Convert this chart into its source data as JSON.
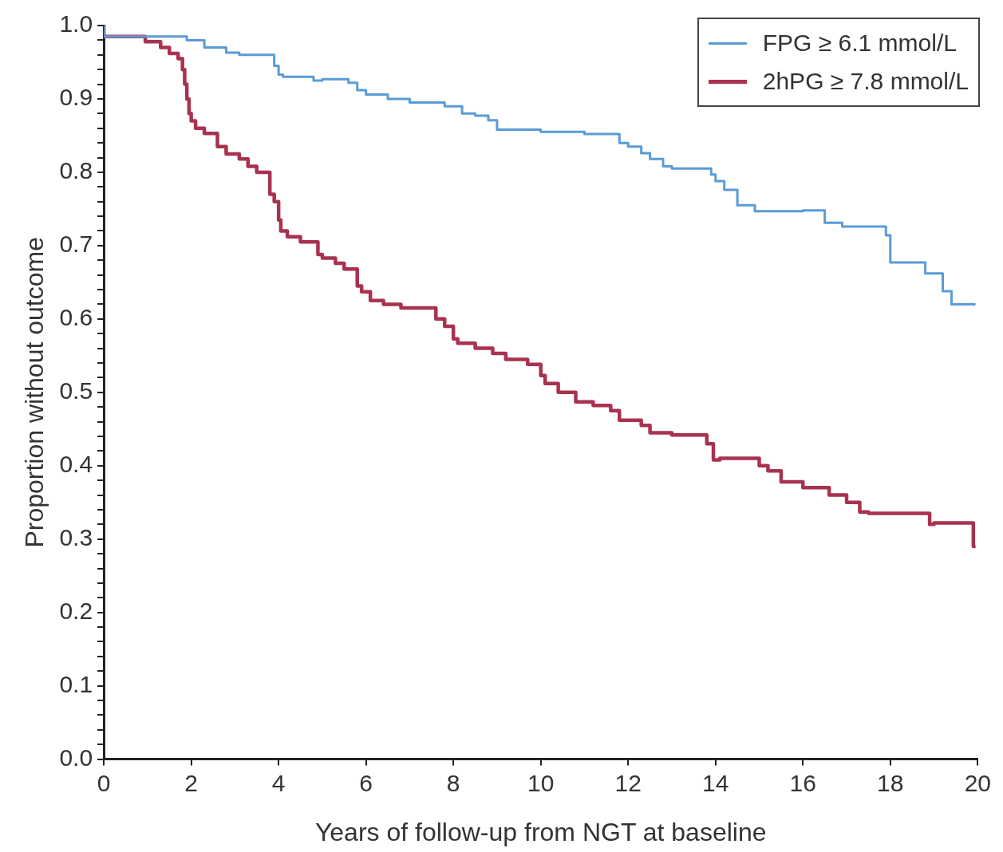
{
  "chart_data": {
    "type": "step",
    "xlabel": "Years of follow-up from NGT at baseline",
    "ylabel": "Proportion without outcome",
    "xlim": [
      0,
      20
    ],
    "xticks": [
      0,
      2,
      4,
      6,
      8,
      10,
      12,
      14,
      16,
      18,
      20
    ],
    "ylim": [
      0,
      1
    ],
    "yticks": [
      {
        "value": 0,
        "label": "0.0"
      },
      {
        "value": 0.02,
        "label": null
      },
      {
        "value": 0.04,
        "label": null
      },
      {
        "value": 0.06,
        "label": null
      },
      {
        "value": 0.08,
        "label": null
      },
      0.1,
      {
        "value": 0.12,
        "label": null
      },
      {
        "value": 0.14,
        "label": null
      },
      {
        "value": 0.16,
        "label": null
      },
      {
        "value": 0.18,
        "label": null
      },
      0.2,
      {
        "value": 0.22,
        "label": null
      },
      {
        "value": 0.24,
        "label": null
      },
      {
        "value": 0.26,
        "label": null
      },
      {
        "value": 0.28,
        "label": null
      },
      0.3,
      {
        "value": 0.32,
        "label": null
      },
      {
        "value": 0.34,
        "label": null
      },
      {
        "value": 0.36,
        "label": null
      },
      {
        "value": 0.38,
        "label": null
      },
      0.4,
      {
        "value": 0.42,
        "label": null
      },
      {
        "value": 0.44,
        "label": null
      },
      {
        "value": 0.46,
        "label": null
      },
      {
        "value": 0.48,
        "label": null
      },
      0.5,
      {
        "value": 0.52,
        "label": null
      },
      {
        "value": 0.54,
        "label": null
      },
      {
        "value": 0.56,
        "label": null
      },
      {
        "value": 0.58,
        "label": null
      },
      0.6,
      {
        "value": 0.62,
        "label": null
      },
      {
        "value": 0.64,
        "label": null
      },
      {
        "value": 0.66,
        "label": null
      },
      {
        "value": 0.68,
        "label": null
      },
      0.7,
      {
        "value": 0.72,
        "label": null
      },
      {
        "value": 0.74,
        "label": null
      },
      {
        "value": 0.76,
        "label": null
      },
      {
        "value": 0.78,
        "label": null
      },
      0.8,
      {
        "value": 0.82,
        "label": null
      },
      {
        "value": 0.84,
        "label": null
      },
      {
        "value": 0.86,
        "label": null
      },
      {
        "value": 0.88,
        "label": null
      },
      0.9,
      {
        "value": 0.92,
        "label": null
      },
      {
        "value": 0.94,
        "label": null
      },
      {
        "value": 0.96,
        "label": null
      },
      {
        "value": 0.98,
        "label": null
      },
      {
        "value": 1,
        "label": "1.0"
      }
    ],
    "grid": false,
    "legend": "top right",
    "marker": "none",
    "line_style": "solid",
    "series": [
      {
        "name": "FPG ≥ 6.1 mmol/L",
        "color": "#5b9bd5",
        "x": [
          0,
          1.9,
          2.3,
          2.8,
          3.1,
          3.9,
          4.0,
          4.1,
          4.8,
          5.0,
          5.6,
          5.8,
          6.0,
          6.5,
          7.0,
          7.8,
          8.2,
          8.5,
          8.8,
          9.0,
          10.0,
          11.0,
          11.8,
          12.0,
          12.3,
          12.5,
          12.8,
          13.0,
          13.9,
          14.0,
          14.2,
          14.5,
          14.9,
          16.0,
          16.5,
          16.9,
          17.9,
          18.0,
          18.8,
          19.2,
          19.4,
          19.95
        ],
        "values": [
          1.0,
          0.985,
          0.98,
          0.97,
          0.963,
          0.96,
          0.945,
          0.933,
          0.93,
          0.925,
          0.927,
          0.922,
          0.912,
          0.906,
          0.9,
          0.895,
          0.89,
          0.88,
          0.877,
          0.871,
          0.858,
          0.855,
          0.852,
          0.84,
          0.835,
          0.826,
          0.818,
          0.808,
          0.805,
          0.797,
          0.788,
          0.776,
          0.755,
          0.747,
          0.748,
          0.731,
          0.726,
          0.714,
          0.677,
          0.662,
          0.638,
          0.62
        ]
      },
      {
        "name": "2hPG ≥ 7.8 mmol/L",
        "color": "#a8324f",
        "x": [
          0,
          0.95,
          1.3,
          1.5,
          1.7,
          1.8,
          1.85,
          1.9,
          1.95,
          2.0,
          2.1,
          2.3,
          2.6,
          2.8,
          3.1,
          3.3,
          3.5,
          3.8,
          3.9,
          4.0,
          4.05,
          4.2,
          4.5,
          4.9,
          5.0,
          5.3,
          5.5,
          5.8,
          5.9,
          6.1,
          6.4,
          6.8,
          7.6,
          7.8,
          8.0,
          8.1,
          8.5,
          8.9,
          9.2,
          9.7,
          10.0,
          10.1,
          10.4,
          10.8,
          11.2,
          11.6,
          11.8,
          12.3,
          12.5,
          13.0,
          13.8,
          13.95,
          14.1,
          15.0,
          15.2,
          15.5,
          16.0,
          16.6,
          17.0,
          17.3,
          17.5,
          18.9,
          19.0,
          19.9,
          19.95
        ],
        "values": [
          1.0,
          0.985,
          0.978,
          0.97,
          0.962,
          0.955,
          0.94,
          0.92,
          0.9,
          0.88,
          0.87,
          0.86,
          0.853,
          0.835,
          0.825,
          0.818,
          0.808,
          0.8,
          0.77,
          0.76,
          0.735,
          0.72,
          0.712,
          0.705,
          0.688,
          0.683,
          0.676,
          0.668,
          0.645,
          0.637,
          0.625,
          0.62,
          0.615,
          0.6,
          0.59,
          0.573,
          0.567,
          0.56,
          0.553,
          0.545,
          0.538,
          0.523,
          0.512,
          0.5,
          0.487,
          0.482,
          0.475,
          0.462,
          0.455,
          0.445,
          0.442,
          0.43,
          0.408,
          0.41,
          0.4,
          0.393,
          0.378,
          0.37,
          0.36,
          0.35,
          0.337,
          0.335,
          0.32,
          0.322,
          0.29
        ]
      }
    ]
  }
}
